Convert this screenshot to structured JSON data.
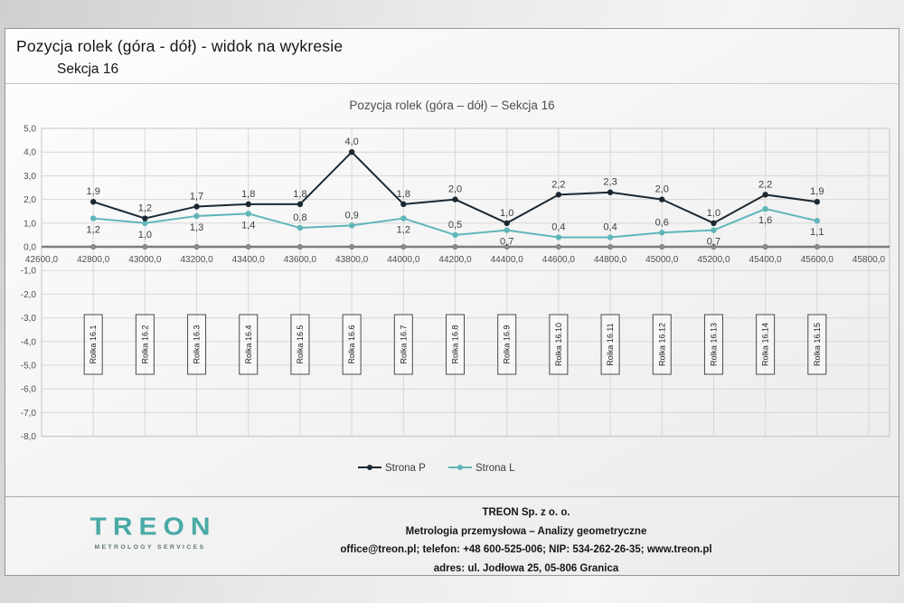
{
  "header": {
    "title": "Pozycja rolek (góra - dół) - widok na wykresie",
    "subtitle": "Sekcja 16"
  },
  "chart_data": {
    "type": "line",
    "title": "Pozycja rolek (góra – dół) – Sekcja 16",
    "xlabel": "",
    "ylabel": "",
    "xlim": [
      42600,
      45800
    ],
    "ylim": [
      -8,
      5
    ],
    "grid": true,
    "legend_position": "bottom",
    "x_ticks": [
      42600,
      42800,
      43000,
      43200,
      43400,
      43600,
      43800,
      44000,
      44200,
      44400,
      44600,
      44800,
      45000,
      45200,
      45400,
      45600,
      45800
    ],
    "x_tick_labels": [
      "42600,0",
      "42800,0",
      "43000,0",
      "43200,0",
      "43400,0",
      "43600,0",
      "43800,0",
      "44000,0",
      "44200,0",
      "44400,0",
      "44600,0",
      "44800,0",
      "45000,0",
      "45200,0",
      "45400,0",
      "45600,0",
      "45800,0"
    ],
    "y_ticks": [
      5,
      4,
      3,
      2,
      1,
      0,
      -1,
      -2,
      -3,
      -4,
      -5,
      -6,
      -7,
      -8
    ],
    "y_tick_labels": [
      "5,0",
      "4,0",
      "3,0",
      "2,0",
      "1,0",
      "0,0",
      "-1,0",
      "-2,0",
      "-3,0",
      "-4,0",
      "-5,0",
      "-6,0",
      "-7,0",
      "-8,0"
    ],
    "x": [
      42800,
      43000,
      43200,
      43400,
      43600,
      43800,
      44000,
      44200,
      44400,
      44600,
      44800,
      45000,
      45200,
      45400,
      45600
    ],
    "categories": [
      "Rolka 16.1",
      "Rolka 16.2",
      "Rolka 16.3",
      "Rolka 16.4",
      "Rolka 16.5",
      "Rolka 16.6",
      "Rolka 16.7",
      "Rolka 16.8",
      "Rolka 16.9",
      "Rolka 16.10",
      "Rolka 16.11",
      "Rolka 16.12",
      "Rolka 16.13",
      "Rolka 16.14",
      "Rolka 16.15"
    ],
    "series": [
      {
        "name": "Strona L",
        "color": "#5fb6b9",
        "values": [
          1.2,
          1.0,
          1.3,
          1.4,
          0.8,
          0.9,
          1.2,
          0.5,
          0.7,
          0.4,
          0.4,
          0.6,
          0.7,
          1.6,
          1.1
        ],
        "labels": [
          "1,2",
          "1,0",
          "1,3",
          "1,4",
          "0,8",
          "0,9",
          "1,2",
          "0,5",
          "0,7",
          "0,4",
          "0,4",
          "0,6",
          "0,7",
          "1,6",
          "1,1"
        ],
        "label_positions": [
          "below",
          "below",
          "below",
          "below",
          "above",
          "above",
          "below",
          "above",
          "below",
          "above",
          "above",
          "above",
          "below",
          "below",
          "below"
        ]
      },
      {
        "name": "Strona P",
        "color": "#1b2832",
        "values": [
          1.9,
          1.2,
          1.7,
          1.8,
          1.8,
          4.0,
          1.8,
          2.0,
          1.0,
          2.2,
          2.3,
          2.0,
          1.0,
          2.2,
          1.9
        ],
        "labels": [
          "1,9",
          "1,2",
          "1,7",
          "1,8",
          "1,8",
          "4,0",
          "1,8",
          "2,0",
          "1,0",
          "2,2",
          "2,3",
          "2,0",
          "1,0",
          "2,2",
          "1,9"
        ],
        "label_positions": [
          "above",
          "above",
          "above",
          "above",
          "above",
          "above",
          "above",
          "above",
          "above",
          "above",
          "above",
          "above",
          "above",
          "above",
          "above"
        ]
      }
    ],
    "baseline": {
      "value": 0,
      "line_color": "#7d7d7d",
      "marker_color": "#8b8b8b"
    },
    "legend_order": [
      "Strona P",
      "Strona L"
    ]
  },
  "footer": {
    "company": "TREON Sp. z o. o.",
    "line2": "Metrologia przemysłowa – Analizy geometryczne",
    "line3": "office@treon.pl; telefon: +48 600-525-006; NIP: 534-262-26-35; www.treon.pl",
    "line4": "adres: ul. Jodłowa 25, 05-806 Granica",
    "logo": {
      "text": "TREON",
      "subtext": "METROLOGY SERVICES",
      "color": "#4aa9a6"
    }
  }
}
